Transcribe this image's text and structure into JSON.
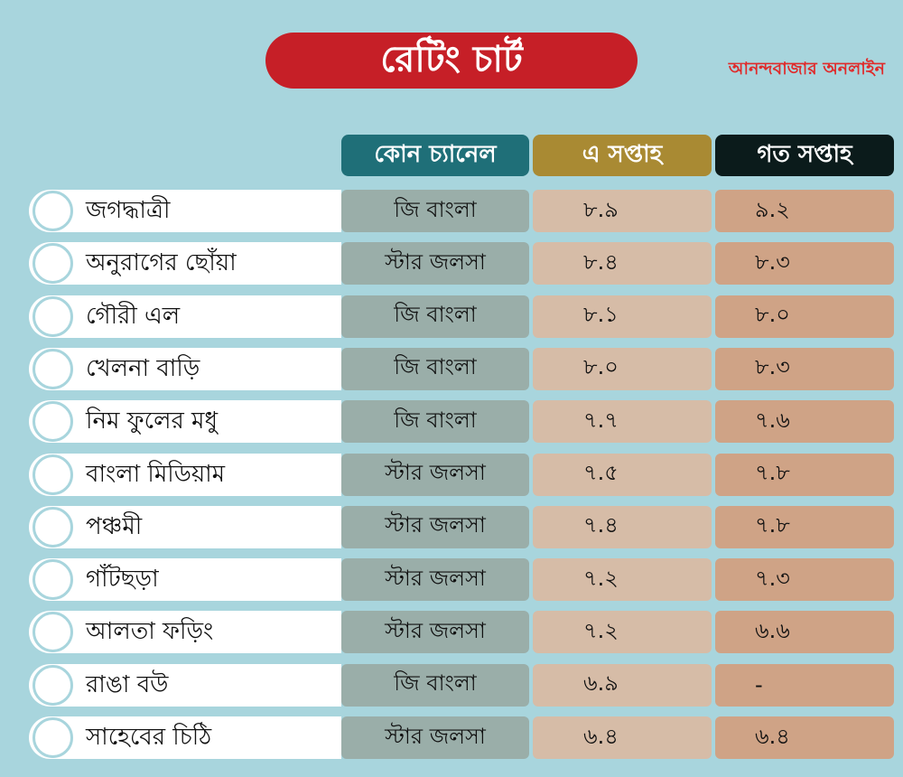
{
  "title": "রেটিং চার্ট",
  "brand": "আনন্দবাজার অনলাইন",
  "chart_data": {
    "type": "table",
    "columns": [
      "কোন চ্যানেল",
      "এ সপ্তাহ",
      "গত সপ্তাহ"
    ],
    "rows": [
      {
        "show": "জগদ্ধাত্রী",
        "channel": "জি বাংলা",
        "this_week": "৮.৯",
        "last_week": "৯.২"
      },
      {
        "show": "অনুরাগের ছোঁয়া",
        "channel": "স্টার জলসা",
        "this_week": "৮.৪",
        "last_week": "৮.৩"
      },
      {
        "show": "গৌরী এল",
        "channel": "জি বাংলা",
        "this_week": "৮.১",
        "last_week": "৮.০"
      },
      {
        "show": "খেলনা বাড়ি",
        "channel": "জি বাংলা",
        "this_week": "৮.০",
        "last_week": "৮.৩"
      },
      {
        "show": "নিম ফুলের মধু",
        "channel": "জি বাংলা",
        "this_week": "৭.৭",
        "last_week": "৭.৬"
      },
      {
        "show": "বাংলা মিডিয়াম",
        "channel": "স্টার জলসা",
        "this_week": "৭.৫",
        "last_week": "৭.৮"
      },
      {
        "show": "পঞ্চমী",
        "channel": "স্টার জলসা",
        "this_week": "৭.৪",
        "last_week": "৭.৮"
      },
      {
        "show": "গাঁটছড়া",
        "channel": "স্টার জলসা",
        "this_week": "৭.২",
        "last_week": "৭.৩"
      },
      {
        "show": "আলতা ফড়িং",
        "channel": "স্টার জলসা",
        "this_week": "৭.২",
        "last_week": "৬.৬"
      },
      {
        "show": "রাঙা বউ",
        "channel": "জি বাংলা",
        "this_week": "৬.৯",
        "last_week": "-"
      },
      {
        "show": "সাহেবের চিঠি",
        "channel": "স্টার জলসা",
        "this_week": "৬.৪",
        "last_week": "৬.৪"
      }
    ]
  },
  "colors": {
    "background": "#a8d5dd",
    "title": "#c61f27",
    "channel_header": "#1f6f78",
    "this_week_header": "#a98a33",
    "last_week_header": "#0b1b1b"
  }
}
